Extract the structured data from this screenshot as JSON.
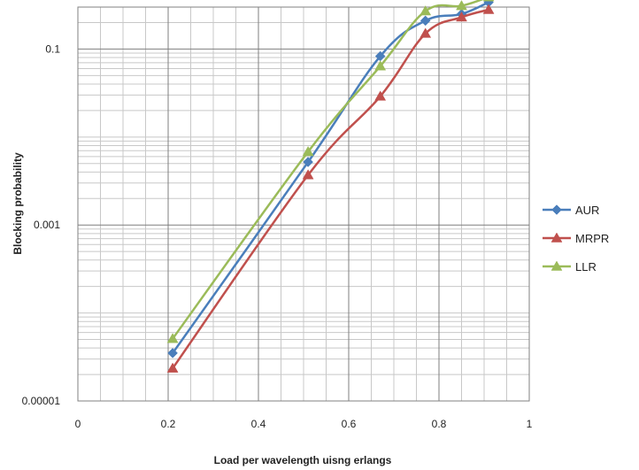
{
  "chart_data": {
    "type": "line",
    "title": "",
    "xlabel": "Load per wavelength uisng erlangs",
    "ylabel": "Blocking probability",
    "xlim": [
      0,
      1
    ],
    "ylim": [
      1e-05,
      0.3
    ],
    "yscale": "log",
    "grid": true,
    "legend_position": "right",
    "x_ticks": [
      "0",
      "0.2",
      "0.4",
      "0.6",
      "0.8",
      "1"
    ],
    "y_ticks": [
      "0.00001",
      "0.001",
      "0.1"
    ],
    "series": [
      {
        "name": "AUR",
        "color": "#4a7ebb",
        "marker": "diamond",
        "x": [
          0.21,
          0.51,
          0.67,
          0.77,
          0.85,
          0.91
        ],
        "y": [
          3.5e-05,
          0.0052,
          0.083,
          0.21,
          0.25,
          0.34
        ]
      },
      {
        "name": "MRPR",
        "color": "#c0504d",
        "marker": "triangle",
        "x": [
          0.21,
          0.51,
          0.67,
          0.77,
          0.85,
          0.91
        ],
        "y": [
          2.35e-05,
          0.0037,
          0.029,
          0.15,
          0.23,
          0.28
        ]
      },
      {
        "name": "LLR",
        "color": "#9bbb59",
        "marker": "triangle",
        "x": [
          0.21,
          0.51,
          0.67,
          0.77,
          0.85,
          0.91
        ],
        "y": [
          5.1e-05,
          0.0068,
          0.064,
          0.27,
          0.31,
          0.39
        ]
      }
    ]
  }
}
